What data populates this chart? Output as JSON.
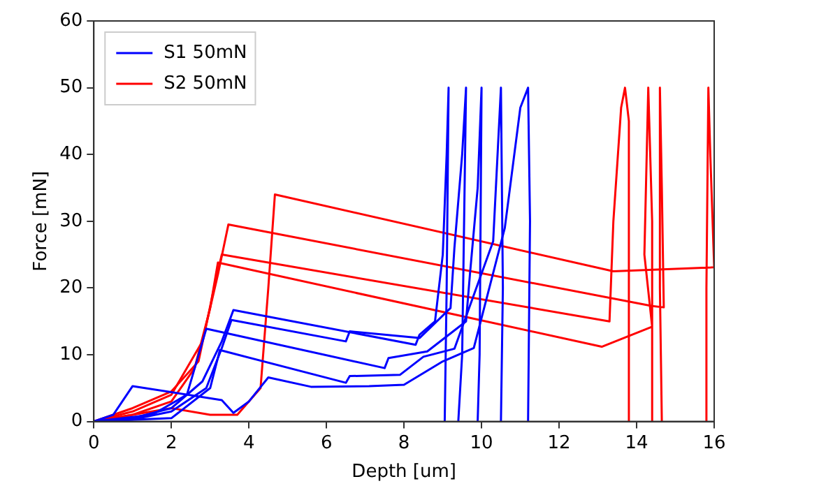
{
  "chart_data": {
    "type": "line",
    "xlabel": "Depth [um]",
    "ylabel": "Force [mN]",
    "xlim": [
      0,
      16
    ],
    "xticks": [
      0,
      2,
      4,
      6,
      8,
      10,
      12,
      14,
      16
    ],
    "ylim": [
      0,
      60
    ],
    "yticks": [
      0,
      10,
      20,
      30,
      40,
      50,
      60
    ],
    "grid": false,
    "legend": "top left",
    "marker": "none",
    "line_style": "solid",
    "series": [
      {
        "name": "S1 50mN",
        "color": "#0000ff",
        "x": [
          0,
          1,
          2,
          2.8,
          3.3,
          3.6,
          8.3,
          8.4,
          8.8,
          9.0,
          9.1,
          9.15,
          9.1,
          9.05
        ],
        "values": [
          0,
          0.5,
          2,
          6,
          12,
          16.7,
          11.5,
          13,
          15,
          25,
          40,
          50,
          20,
          0
        ]
      },
      {
        "color": "#0000ff",
        "x": [
          0,
          1,
          2,
          2.9,
          3.3,
          3.55,
          6.5,
          6.6,
          8.4,
          9.2,
          9.3,
          9.5,
          9.6,
          9.5,
          9.4
        ],
        "values": [
          0,
          0.3,
          1.5,
          5,
          11,
          15.2,
          12,
          13.5,
          12.5,
          17,
          26,
          40,
          50,
          10,
          0
        ]
      },
      {
        "color": "#0000ff",
        "x": [
          0,
          1.5,
          2.4,
          2.9,
          7.5,
          7.6,
          8.6,
          9.6,
          9.7,
          9.9,
          10.0,
          9.95,
          9.9
        ],
        "values": [
          0,
          1,
          4,
          13.9,
          8,
          9.5,
          10.5,
          15,
          22,
          35,
          50,
          10,
          0
        ]
      },
      {
        "color": "#0000ff",
        "x": [
          0,
          2,
          3,
          3.25,
          6.5,
          6.6,
          7.9,
          8.5,
          9.3,
          10.3,
          10.5,
          10.55,
          10.5
        ],
        "values": [
          0,
          0.5,
          5,
          10.7,
          5.8,
          6.8,
          7,
          9.7,
          10.9,
          27,
          50,
          20,
          0
        ]
      },
      {
        "color": "#0000ff",
        "x": [
          0,
          0.5,
          1.0,
          3.3,
          3.6,
          4,
          4.5,
          5.6,
          7.1,
          8,
          9,
          9.8,
          10.6,
          11.0,
          11.2,
          11.25,
          11.2
        ],
        "values": [
          0,
          1,
          5.3,
          3.2,
          1.3,
          3,
          6.6,
          5.2,
          5.3,
          5.5,
          9,
          11,
          29,
          47,
          50,
          30,
          0
        ]
      },
      {
        "name": "S2 50mN",
        "color": "#ff0000",
        "x": [
          0,
          1,
          2,
          3,
          3.7,
          4.3,
          4.5,
          4.67,
          13.4,
          16,
          15.9,
          15.85,
          15.8,
          15.8
        ],
        "values": [
          0,
          1,
          2,
          1,
          1,
          5,
          20,
          34,
          22.5,
          23.1,
          40,
          50,
          20,
          0
        ]
      },
      {
        "color": "#ff0000",
        "x": [
          0,
          1,
          2,
          2.8,
          3.2,
          3.47,
          14.4,
          14.7,
          14.65,
          14.6,
          14.6,
          14.65
        ],
        "values": [
          0,
          1.5,
          4,
          12,
          22,
          29.5,
          17.3,
          17.1,
          35,
          50,
          20,
          0
        ]
      },
      {
        "color": "#ff0000",
        "x": [
          0,
          1,
          2,
          2.7,
          3.1,
          3.3,
          13.3,
          13.4,
          13.6,
          13.7,
          13.8,
          13.8
        ],
        "values": [
          0,
          2,
          4.5,
          9,
          20,
          25,
          15,
          30,
          47,
          50,
          45,
          0
        ]
      },
      {
        "color": "#ff0000",
        "x": [
          0,
          1,
          2,
          2.6,
          3.0,
          3.2,
          13.1,
          14.4,
          14.2,
          14.3,
          14.4,
          14.4
        ],
        "values": [
          0,
          1,
          3,
          8,
          17,
          23.8,
          11.2,
          14.2,
          25,
          50,
          30,
          0
        ]
      }
    ]
  }
}
